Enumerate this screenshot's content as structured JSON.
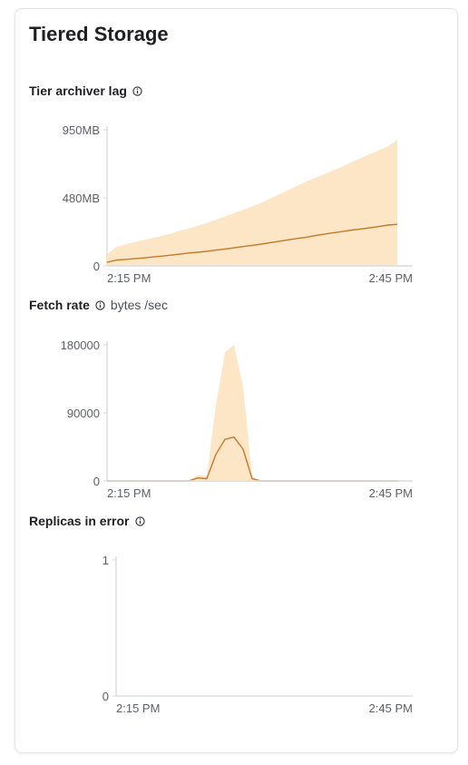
{
  "card": {
    "title": "Tiered Storage"
  },
  "sections": {
    "archiver": {
      "title": "Tier archiver lag",
      "icon": "info-icon"
    },
    "fetch": {
      "title": "Fetch rate",
      "icon": "info-icon",
      "unit": "bytes /sec"
    },
    "replicas": {
      "title": "Replicas in error",
      "icon": "info-icon"
    }
  },
  "colors": {
    "band_fill": "#fde6c6",
    "line": "#c27a2b",
    "axis": "#dcdde0"
  },
  "chart_data": [
    {
      "type": "area",
      "name": "tier-archiver-lag",
      "x_ticks": [
        "2:15 PM",
        "2:45 PM"
      ],
      "y_ticks": [
        "950MB",
        "480MB",
        "0"
      ],
      "ylim": [
        0,
        950
      ],
      "y_unit": "MB",
      "grid": false,
      "x": [
        0,
        1,
        2,
        3,
        4,
        5,
        6,
        7,
        8,
        9,
        10,
        11,
        12,
        13,
        14,
        15,
        16,
        17,
        18,
        19,
        20,
        21,
        22,
        23,
        24,
        25,
        26,
        27,
        28,
        29,
        30,
        31,
        32
      ],
      "series": [
        {
          "values": [
            25,
            40,
            45,
            50,
            55,
            62,
            68,
            75,
            82,
            90,
            95,
            102,
            110,
            118,
            126,
            135,
            143,
            152,
            162,
            172,
            182,
            192,
            200,
            212,
            222,
            232,
            240,
            250,
            258,
            266,
            275,
            285,
            290
          ]
        }
      ],
      "band_upper": [
        80,
        130,
        150,
        165,
        180,
        195,
        210,
        225,
        245,
        260,
        280,
        300,
        320,
        345,
        368,
        390,
        415,
        440,
        470,
        500,
        530,
        560,
        590,
        615,
        640,
        668,
        695,
        725,
        752,
        780,
        808,
        835,
        880
      ]
    },
    {
      "type": "area",
      "name": "fetch-rate",
      "x_ticks": [
        "2:15 PM",
        "2:45 PM"
      ],
      "y_ticks": [
        "180000",
        "90000",
        "0"
      ],
      "ylim": [
        0,
        180000
      ],
      "grid": false,
      "x": [
        0,
        1,
        2,
        3,
        4,
        5,
        6,
        7,
        8,
        9,
        10,
        11,
        12,
        13,
        14,
        15,
        16,
        17,
        18,
        19,
        20,
        21,
        22,
        23,
        24,
        25,
        26,
        27,
        28,
        29,
        30,
        31,
        32
      ],
      "series": [
        {
          "values": [
            0,
            0,
            0,
            0,
            0,
            0,
            0,
            0,
            0,
            0,
            4000,
            3000,
            35000,
            55000,
            58000,
            42000,
            3000,
            0,
            0,
            0,
            0,
            0,
            0,
            0,
            0,
            0,
            0,
            0,
            0,
            0,
            0,
            0,
            0
          ]
        }
      ],
      "band_upper": [
        0,
        0,
        0,
        0,
        0,
        0,
        0,
        0,
        0,
        0,
        8000,
        6000,
        100000,
        170000,
        180000,
        125000,
        6000,
        0,
        0,
        0,
        0,
        0,
        0,
        0,
        0,
        0,
        0,
        0,
        0,
        0,
        0,
        0,
        0
      ]
    },
    {
      "type": "line",
      "name": "replicas-in-error",
      "x_ticks": [
        "2:15 PM",
        "2:45 PM"
      ],
      "y_ticks": [
        "1",
        "0"
      ],
      "ylim": [
        0,
        1
      ],
      "grid": false,
      "series": []
    }
  ]
}
